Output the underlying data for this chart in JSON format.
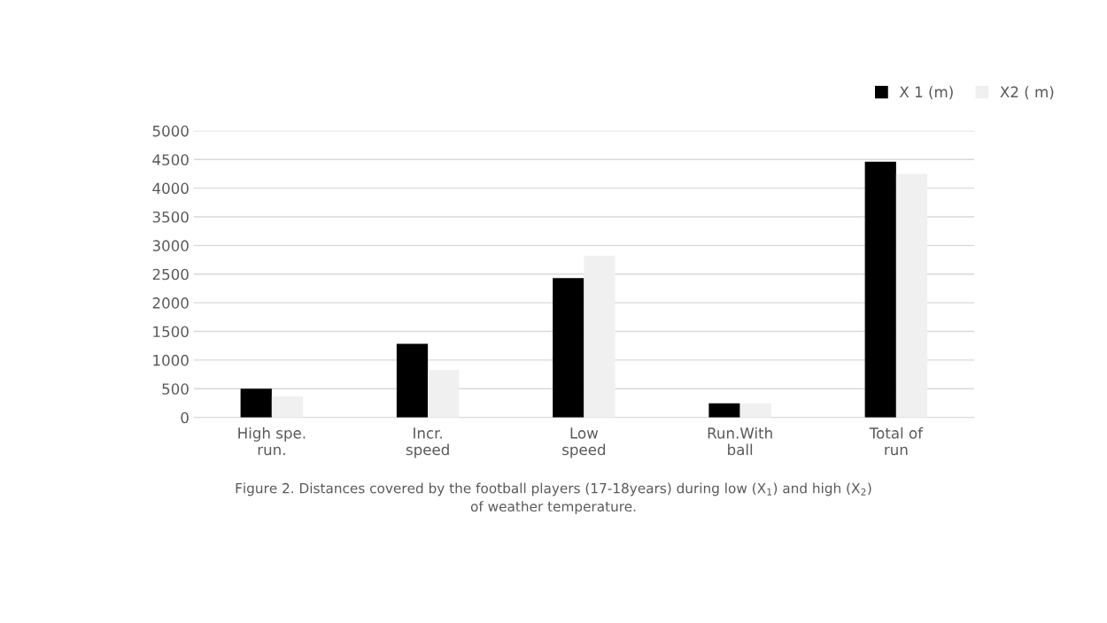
{
  "chart_data": {
    "type": "bar",
    "categories": [
      "High spe.\nrun.",
      "Incr.\nspeed",
      "Low\nspeed",
      "Run.With\nball",
      "Total of\nrun"
    ],
    "series": [
      {
        "name": "X 1 (m)",
        "color": "#000000",
        "values": [
          500,
          1285,
          2430,
          245,
          4460
        ]
      },
      {
        "name": "X2 ( m)",
        "color": "#f0f0f0",
        "values": [
          365,
          825,
          2820,
          245,
          4250
        ]
      }
    ],
    "ylim": [
      0,
      5000
    ],
    "yticks": [
      0,
      500,
      1000,
      1500,
      2000,
      2500,
      3000,
      3500,
      4000,
      4500,
      5000
    ],
    "grid": "y",
    "legend": "top right",
    "annotations": [
      "Figure 2. Distances covered by the football players (17-18years) during low (X$_{1}$) and high (X$_{2}$)\nof weather temperature."
    ]
  }
}
